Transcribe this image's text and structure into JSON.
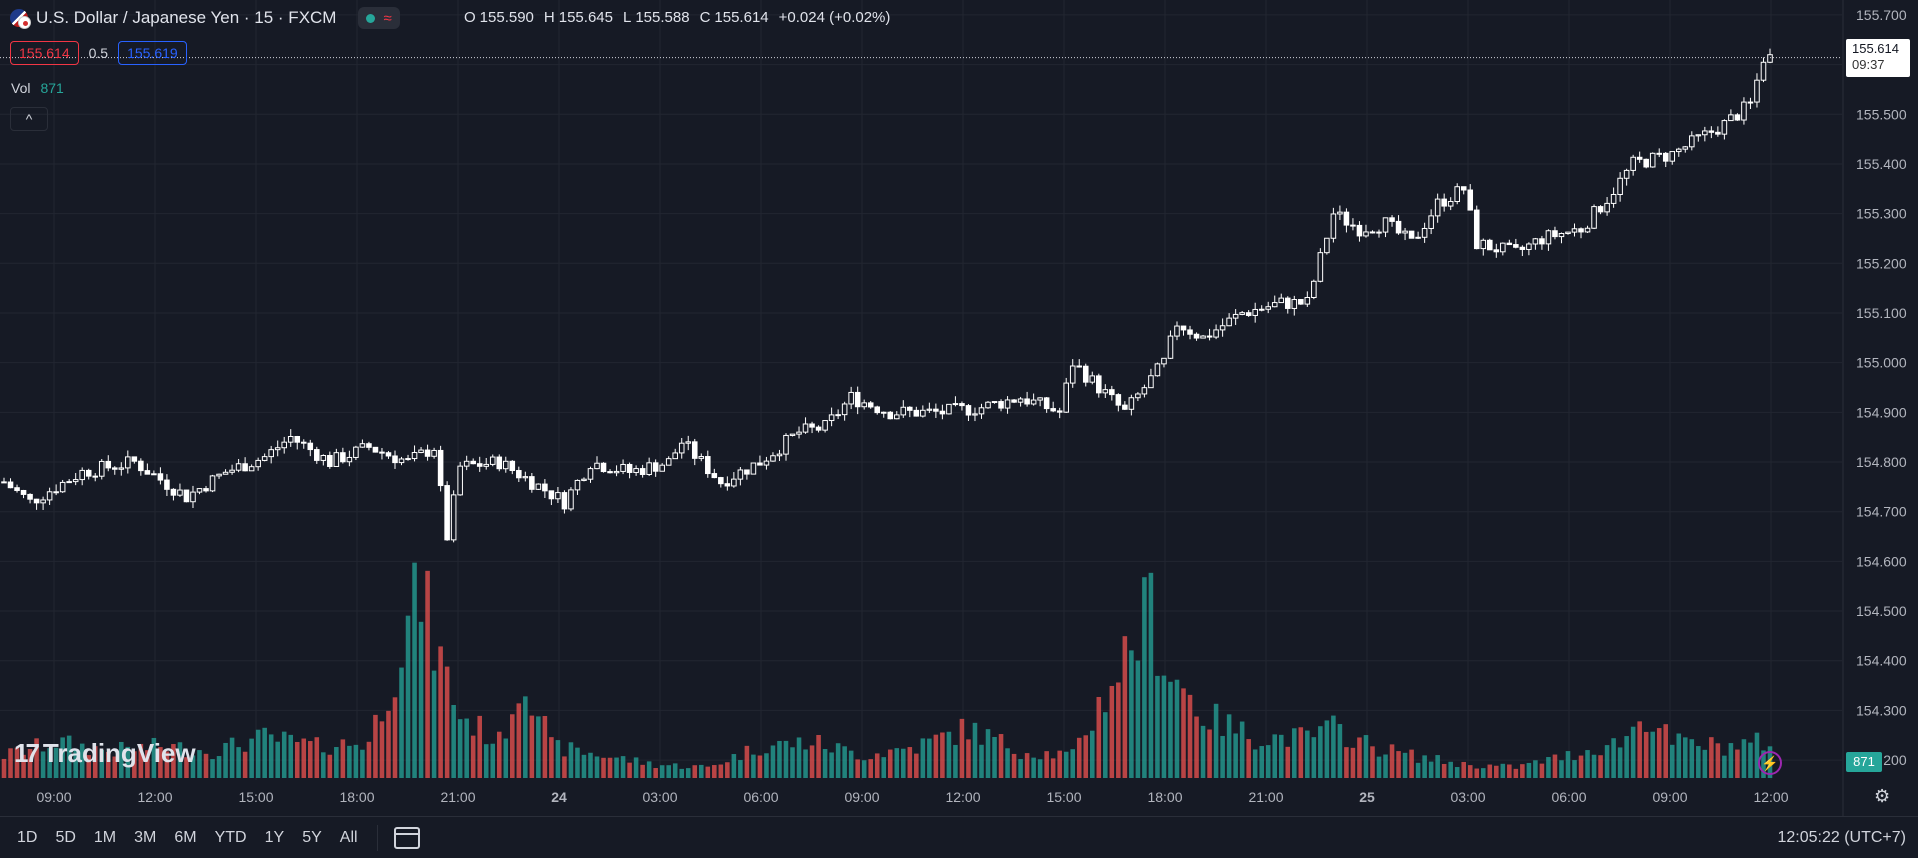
{
  "header": {
    "title": "U.S. Dollar / Japanese Yen · 15 · FXCM",
    "icons": [
      "usd-jpy-flag-icon",
      "market-open-dot-icon",
      "wave-icon"
    ],
    "ohlc": {
      "o_label": "O",
      "o": "155.590",
      "h_label": "H",
      "h": "155.645",
      "l_label": "L",
      "l": "155.588",
      "c_label": "C",
      "c": "155.614",
      "change": "+0.024 (+0.02%)"
    }
  },
  "quote": {
    "bid": "155.614",
    "spread": "0.5",
    "ask": "155.619"
  },
  "volume": {
    "label": "Vol",
    "value": "871"
  },
  "collapse_icon": "chevron-up-icon",
  "logo": {
    "text": "TradingView"
  },
  "last_price": {
    "price": "155.614",
    "countdown": "09:37"
  },
  "volume_tag": "871",
  "bottom": {
    "ranges": [
      "1D",
      "5D",
      "1M",
      "3M",
      "6M",
      "YTD",
      "1Y",
      "5Y",
      "All"
    ],
    "clock": "12:05:22 (UTC+7)"
  },
  "colors": {
    "up_vol": "#26a69a",
    "down_vol": "#ef5350",
    "candle": "#ffffff",
    "background": "#161a25",
    "grid": "#222631"
  },
  "chart_data": {
    "type": "candlestick",
    "y_axis": {
      "ticks": [
        "155.700",
        "155.600",
        "155.500",
        "155.400",
        "155.300",
        "155.200",
        "155.100",
        "155.000",
        "154.900",
        "154.800",
        "154.700",
        "154.600",
        "154.500",
        "154.400",
        "154.300",
        "154.200"
      ],
      "ylim": [
        154.18,
        155.72
      ]
    },
    "x_axis": {
      "ticks": [
        "09:00",
        "12:00",
        "15:00",
        "18:00",
        "21:00",
        "24",
        "03:00",
        "06:00",
        "09:00",
        "12:00",
        "15:00",
        "18:00",
        "21:00",
        "25",
        "03:00",
        "06:00",
        "09:00",
        "12:00"
      ]
    },
    "interval": "15",
    "path_points": [
      [
        0,
        154.76
      ],
      [
        4,
        154.72
      ],
      [
        12,
        154.78
      ],
      [
        20,
        154.8
      ],
      [
        28,
        154.73
      ],
      [
        34,
        154.78
      ],
      [
        40,
        154.81
      ],
      [
        44,
        154.85
      ],
      [
        50,
        154.8
      ],
      [
        56,
        154.83
      ],
      [
        62,
        154.8
      ],
      [
        66,
        154.83
      ],
      [
        68,
        154.65
      ],
      [
        70,
        154.79
      ],
      [
        76,
        154.8
      ],
      [
        86,
        154.72
      ],
      [
        90,
        154.8
      ],
      [
        96,
        154.78
      ],
      [
        102,
        154.8
      ],
      [
        104,
        154.84
      ],
      [
        110,
        154.76
      ],
      [
        116,
        154.8
      ],
      [
        122,
        154.86
      ],
      [
        126,
        154.87
      ],
      [
        130,
        154.93
      ],
      [
        136,
        154.9
      ],
      [
        144,
        154.9
      ],
      [
        150,
        154.91
      ],
      [
        156,
        154.93
      ],
      [
        162,
        154.9
      ],
      [
        164,
        155.0
      ],
      [
        168,
        154.95
      ],
      [
        172,
        154.9
      ],
      [
        178,
        155.0
      ],
      [
        180,
        155.08
      ],
      [
        184,
        155.05
      ],
      [
        190,
        155.1
      ],
      [
        196,
        155.12
      ],
      [
        200,
        155.12
      ],
      [
        204,
        155.3
      ],
      [
        208,
        155.27
      ],
      [
        212,
        155.28
      ],
      [
        216,
        155.24
      ],
      [
        220,
        155.32
      ],
      [
        224,
        155.35
      ],
      [
        226,
        155.24
      ],
      [
        232,
        155.22
      ],
      [
        236,
        155.25
      ],
      [
        242,
        155.27
      ],
      [
        246,
        155.33
      ],
      [
        250,
        155.4
      ],
      [
        256,
        155.42
      ],
      [
        260,
        155.45
      ],
      [
        264,
        155.48
      ],
      [
        268,
        155.52
      ],
      [
        270,
        155.614
      ]
    ],
    "volume_points": [
      [
        0,
        25
      ],
      [
        8,
        40
      ],
      [
        16,
        30
      ],
      [
        24,
        35
      ],
      [
        32,
        30
      ],
      [
        40,
        45
      ],
      [
        48,
        35
      ],
      [
        56,
        40
      ],
      [
        64,
        210
      ],
      [
        66,
        150
      ],
      [
        70,
        70
      ],
      [
        76,
        40
      ],
      [
        80,
        120
      ],
      [
        84,
        35
      ],
      [
        92,
        25
      ],
      [
        100,
        15
      ],
      [
        108,
        12
      ],
      [
        116,
        35
      ],
      [
        124,
        40
      ],
      [
        132,
        25
      ],
      [
        140,
        35
      ],
      [
        148,
        55
      ],
      [
        156,
        30
      ],
      [
        164,
        25
      ],
      [
        176,
        190
      ],
      [
        178,
        130
      ],
      [
        184,
        70
      ],
      [
        192,
        45
      ],
      [
        200,
        45
      ],
      [
        204,
        55
      ],
      [
        210,
        35
      ],
      [
        216,
        25
      ],
      [
        224,
        15
      ],
      [
        232,
        12
      ],
      [
        240,
        25
      ],
      [
        248,
        40
      ],
      [
        252,
        70
      ],
      [
        256,
        40
      ],
      [
        264,
        35
      ],
      [
        270,
        40
      ]
    ]
  }
}
